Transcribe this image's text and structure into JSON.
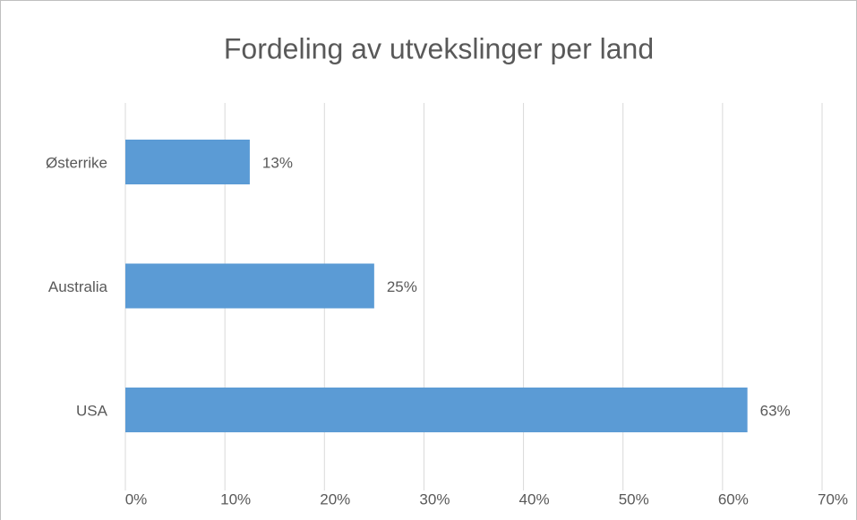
{
  "chart_data": {
    "type": "bar",
    "orientation": "horizontal",
    "title": "Fordeling av utvekslinger per land",
    "categories": [
      "Østerrike",
      "Australia",
      "USA"
    ],
    "values": [
      12.5,
      25,
      62.5
    ],
    "value_labels": [
      "13%",
      "25%",
      "63%"
    ],
    "color": "#5b9bd5",
    "xlim": [
      0,
      70
    ],
    "xticks": [
      {
        "value": 0,
        "label": "0%"
      },
      {
        "value": 10,
        "label": "10%"
      },
      {
        "value": 20,
        "label": "20%"
      },
      {
        "value": 30,
        "label": "30%"
      },
      {
        "value": 40,
        "label": "40%"
      },
      {
        "value": 50,
        "label": "50%"
      },
      {
        "value": 60,
        "label": "60%"
      },
      {
        "value": 70,
        "label": "70%"
      }
    ],
    "grid": true
  }
}
